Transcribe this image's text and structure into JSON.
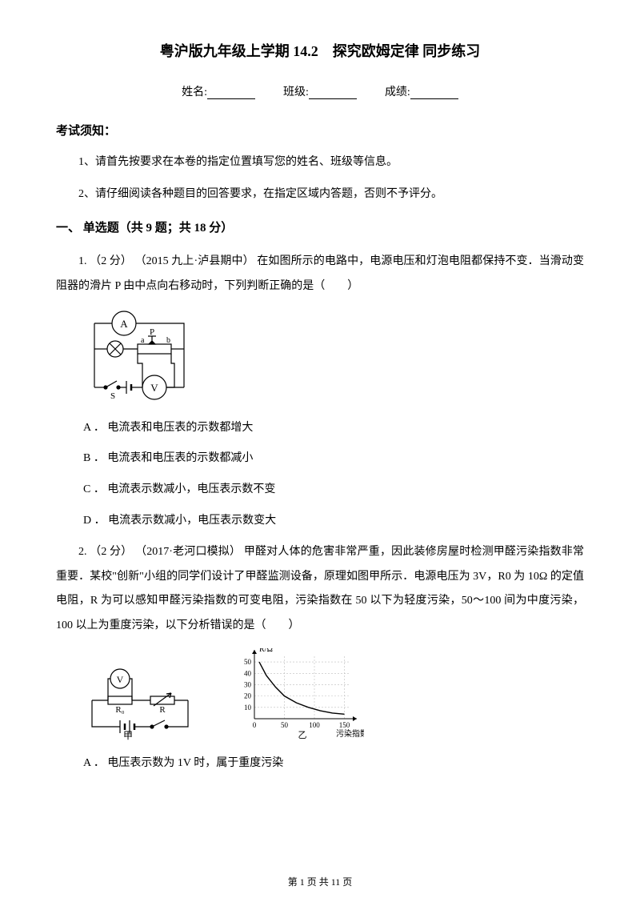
{
  "page": {
    "title": "粤沪版九年级上学期 14.2　探究欧姆定律 同步练习",
    "info_name_label": "姓名:",
    "info_class_label": "班级:",
    "info_score_label": "成绩:",
    "notice_heading": "考试须知：",
    "instructions": [
      "1、请首先按要求在本卷的指定位置填写您的姓名、班级等信息。",
      "2、请仔细阅读各种题目的回答要求，在指定区域内答题，否则不予评分。"
    ],
    "section_heading": "一、 单选题（共 9 题；共 18 分）",
    "q1": {
      "stem": "1.  （2 分） （2015 九上·泸县期中） 在如图所示的电路中，电源电压和灯泡电阻都保持不变．当滑动变阻器的滑片 P 由中点向右移动时，下列判断正确的是（　　）",
      "options": {
        "A": "A ． 电流表和电压表的示数都增大",
        "B": "B ． 电流表和电压表的示数都减小",
        "C": "C ． 电流表示数减小，电压表示数不变",
        "D": "D ． 电流表示数减小，电压表示数变大"
      },
      "diagram": {
        "labels": {
          "ammeter": "A",
          "voltmeter": "V",
          "slider": "P",
          "switch": "S",
          "left": "a",
          "right": "b"
        },
        "stroke": "#000000",
        "stroke_width": 1.2
      }
    },
    "q2": {
      "stem": "2.  （2 分） （2017·老河口模拟） 甲醛对人体的危害非常严重，因此装修房屋时检测甲醛污染指数非常重要．某校\"创新\"小组的同学们设计了甲醛监测设备，原理如图甲所示．电源电压为 3V，R0 为 10Ω 的定值电阻，R 为可以感知甲醛污染指数的可变电阻，污染指数在 50 以下为轻度污染，50～100 间为中度污染，100 以上为重度污染，以下分析错误的是（　　）",
      "optionA": "A ． 电压表示数为 1V 时，属于重度污染",
      "circuit": {
        "labels": {
          "voltmeter": "V",
          "r0": "R₀",
          "r": "R",
          "caption": "甲"
        },
        "stroke": "#000000",
        "stroke_width": 1.2
      },
      "graph": {
        "ylabel": "R/Ω",
        "xlabel": "污染指数",
        "caption": "乙",
        "xlim": [
          0,
          160
        ],
        "ylim": [
          0,
          55
        ],
        "yticks": [
          10,
          20,
          30,
          40,
          50
        ],
        "xticks": [
          0,
          50,
          100,
          150
        ],
        "curve_points": [
          [
            8,
            50
          ],
          [
            20,
            38
          ],
          [
            35,
            28
          ],
          [
            50,
            20
          ],
          [
            70,
            14
          ],
          [
            90,
            10
          ],
          [
            110,
            7
          ],
          [
            130,
            5
          ],
          [
            150,
            4
          ]
        ],
        "stroke": "#000000",
        "grid_color": "#bdbdbd",
        "stroke_width": 1
      }
    },
    "footer": "第 1 页 共 11 页"
  }
}
